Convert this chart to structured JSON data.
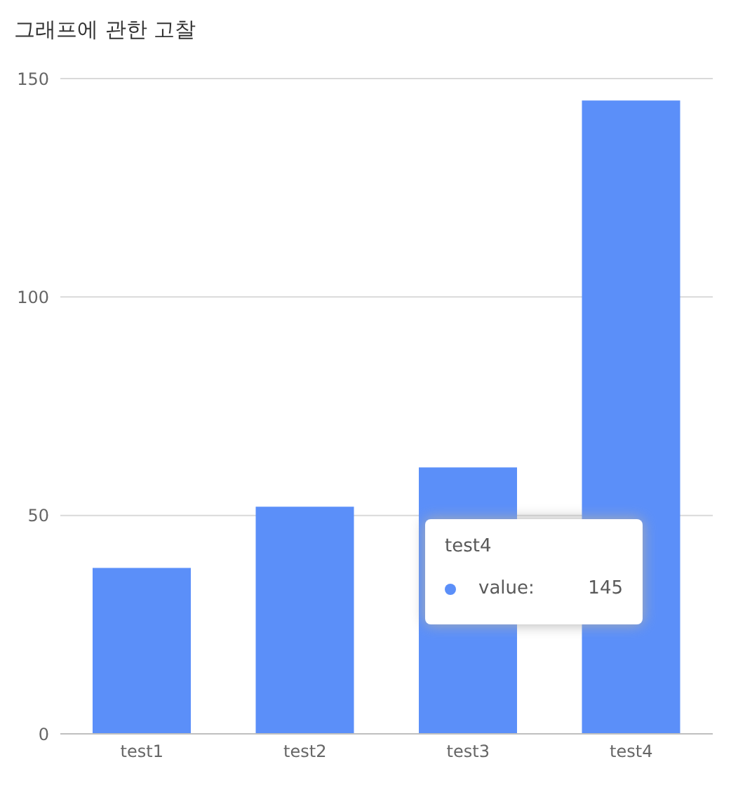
{
  "chart_data": {
    "type": "bar",
    "title": "그래프에 관한 고찰",
    "categories": [
      "test1",
      "test2",
      "test3",
      "test4"
    ],
    "values": [
      38,
      52,
      61,
      145
    ],
    "color": "#5b8ff9",
    "ylim": [
      0,
      150
    ],
    "yticks": [
      0,
      50,
      100,
      150
    ],
    "grid": "y",
    "annotations": [
      "test4",
      "value:",
      "145"
    ]
  }
}
